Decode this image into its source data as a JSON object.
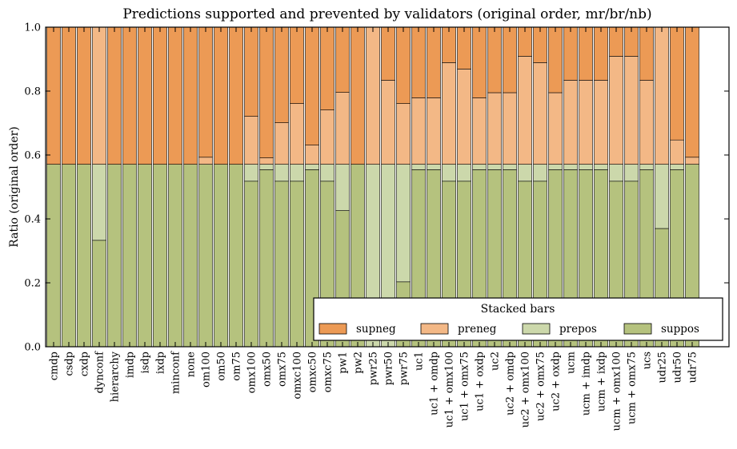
{
  "chart_data": {
    "type": "bar",
    "stacked": true,
    "title": "Predictions supported and prevented by validators (original order, mr/br/nb)",
    "xlabel": "",
    "ylabel": "Ratio (original order)",
    "ylim": [
      0,
      1.0
    ],
    "yticks": [
      "0.0",
      "0.2",
      "0.4",
      "0.6",
      "0.8",
      "1.0"
    ],
    "grid": false,
    "legend": {
      "title": "Stacked bars",
      "position": "bottom-right",
      "ncol": 4
    },
    "categories": [
      "cmdp",
      "csdp",
      "cxdp",
      "dynconf",
      "hierarchy",
      "imdp",
      "isdp",
      "ixdp",
      "minconf",
      "none",
      "om100",
      "om50",
      "om75",
      "omx100",
      "omx50",
      "omx75",
      "omxc100",
      "omxc50",
      "omxc75",
      "pw1",
      "pw2",
      "pwr25",
      "pwr50",
      "pwr75",
      "uc1",
      "uc1 + omdp",
      "uc1 + omx100",
      "uc1 + omx75",
      "uc1 + oxdp",
      "uc2",
      "uc2 + omdp",
      "uc2 + omx100",
      "uc2 + omx75",
      "uc2 + oxdp",
      "ucm",
      "ucm + imdp",
      "ucm + ixdp",
      "ucm + omx100",
      "ucm + omx75",
      "ucs",
      "udr25",
      "udr50",
      "udr75"
    ],
    "series": [
      {
        "name": "suppos",
        "color": "#b5c27e",
        "values": [
          0.571,
          0.571,
          0.571,
          0.333,
          0.571,
          0.571,
          0.571,
          0.571,
          0.571,
          0.571,
          0.571,
          0.571,
          0.571,
          0.518,
          0.554,
          0.518,
          0.518,
          0.554,
          0.518,
          0.426,
          0.571,
          0.0,
          0.0,
          0.203,
          0.554,
          0.554,
          0.518,
          0.518,
          0.554,
          0.554,
          0.554,
          0.518,
          0.518,
          0.554,
          0.554,
          0.554,
          0.554,
          0.518,
          0.518,
          0.554,
          0.37,
          0.554,
          0.571
        ]
      },
      {
        "name": "prepos",
        "color": "#ccd8ab",
        "values": [
          0.0,
          0.0,
          0.0,
          0.238,
          0.0,
          0.0,
          0.0,
          0.0,
          0.0,
          0.0,
          0.0,
          0.0,
          0.0,
          0.053,
          0.017,
          0.053,
          0.053,
          0.017,
          0.053,
          0.145,
          0.0,
          0.571,
          0.571,
          0.368,
          0.017,
          0.017,
          0.053,
          0.053,
          0.017,
          0.017,
          0.017,
          0.053,
          0.053,
          0.017,
          0.017,
          0.017,
          0.017,
          0.053,
          0.053,
          0.017,
          0.201,
          0.017,
          0.0
        ]
      },
      {
        "name": "preneg",
        "color": "#f3b886",
        "values": [
          0.0,
          0.0,
          0.0,
          0.429,
          0.0,
          0.0,
          0.0,
          0.0,
          0.0,
          0.0,
          0.022,
          0.0,
          0.0,
          0.15,
          0.02,
          0.13,
          0.19,
          0.06,
          0.17,
          0.225,
          0.0,
          0.429,
          0.263,
          0.19,
          0.208,
          0.208,
          0.318,
          0.298,
          0.208,
          0.224,
          0.224,
          0.338,
          0.318,
          0.224,
          0.263,
          0.263,
          0.263,
          0.338,
          0.338,
          0.263,
          0.429,
          0.076,
          0.022
        ]
      },
      {
        "name": "supneg",
        "color": "#ec9a55",
        "values": [
          0.429,
          0.429,
          0.429,
          0.0,
          0.429,
          0.429,
          0.429,
          0.429,
          0.429,
          0.429,
          0.407,
          0.429,
          0.429,
          0.279,
          0.409,
          0.299,
          0.239,
          0.369,
          0.259,
          0.204,
          0.429,
          0.0,
          0.166,
          0.239,
          0.221,
          0.221,
          0.111,
          0.131,
          0.221,
          0.205,
          0.205,
          0.091,
          0.111,
          0.205,
          0.166,
          0.166,
          0.166,
          0.091,
          0.091,
          0.166,
          0.0,
          0.353,
          0.407
        ]
      }
    ]
  }
}
